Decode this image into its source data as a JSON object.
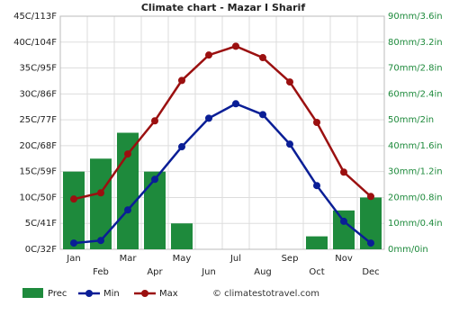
{
  "chart_data": {
    "type": "bar-line",
    "title": "Climate chart - Mazar I Sharif",
    "categories": [
      "Jan",
      "Feb",
      "Mar",
      "Apr",
      "May",
      "Jun",
      "Jul",
      "Aug",
      "Sep",
      "Oct",
      "Nov",
      "Dec"
    ],
    "series": [
      {
        "name": "Prec",
        "type": "bar",
        "axis": "y2",
        "color": "#1e8a3c",
        "values": [
          30,
          35,
          45,
          30,
          10,
          0,
          0,
          0,
          0,
          5,
          15,
          20
        ]
      },
      {
        "name": "Min",
        "type": "line",
        "color": "#0a1e96",
        "values": [
          1.2,
          1.7,
          7.6,
          13.5,
          19.8,
          25.3,
          28.1,
          26.0,
          20.3,
          12.3,
          5.4,
          1.2
        ]
      },
      {
        "name": "Max",
        "type": "line",
        "color": "#9b1010",
        "values": [
          9.7,
          10.9,
          18.4,
          24.8,
          32.6,
          37.5,
          39.2,
          37.0,
          32.3,
          24.5,
          14.9,
          10.2
        ]
      }
    ],
    "ylim": [
      0,
      45
    ],
    "yticks": [
      {
        "value": 0,
        "label": "0C/32F"
      },
      {
        "value": 5,
        "label": "5C/41F"
      },
      {
        "value": 10,
        "label": "10C/50F"
      },
      {
        "value": 15,
        "label": "15C/59F"
      },
      {
        "value": 20,
        "label": "20C/68F"
      },
      {
        "value": 25,
        "label": "25C/77F"
      },
      {
        "value": 30,
        "label": "30C/86F"
      },
      {
        "value": 35,
        "label": "35C/95F"
      },
      {
        "value": 40,
        "label": "40C/104F"
      },
      {
        "value": 45,
        "label": "45C/113F"
      }
    ],
    "y2lim": [
      0,
      90
    ],
    "y2ticks": [
      {
        "value": 0,
        "label": "0mm/0in"
      },
      {
        "value": 10,
        "label": "10mm/0.4in"
      },
      {
        "value": 20,
        "label": "20mm/0.8in"
      },
      {
        "value": 30,
        "label": "30mm/1.2in"
      },
      {
        "value": 40,
        "label": "40mm/1.6in"
      },
      {
        "value": 50,
        "label": "50mm/2in"
      },
      {
        "value": 60,
        "label": "60mm/2.4in"
      },
      {
        "value": 70,
        "label": "70mm/2.8in"
      },
      {
        "value": 80,
        "label": "80mm/3.2in"
      },
      {
        "value": 90,
        "label": "90mm/3.6in"
      }
    ],
    "grid": true,
    "source": "© climatestotravel.com"
  }
}
